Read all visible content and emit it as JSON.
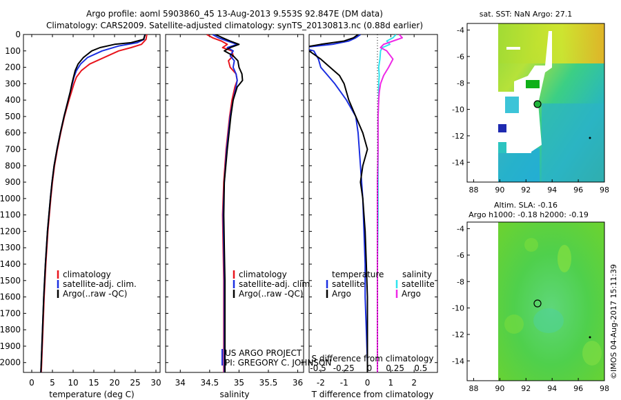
{
  "header": {
    "line1": "Argo profile: aoml 5903860_45 13-Aug-2013 9.553S 92.847E (DM data)",
    "line2": "Climatology: CARS2009. Satellite-adjusted climatology: synTS_20130813.nc (0.88d earlier)"
  },
  "colors": {
    "climatology": "#e8141c",
    "satellite": "#1a2ee0",
    "argo": "#000000",
    "sat_salinity": "#2fe4ee",
    "argo_salinity": "#ee28e6"
  },
  "chart_data": [
    {
      "type": "line",
      "name": "temperature-profile",
      "xlabel": "temperature (deg C)",
      "ylabel": "",
      "xlim": [
        -2,
        31
      ],
      "ylim": [
        2060,
        0
      ],
      "xticks": [
        0,
        5,
        10,
        15,
        20,
        25,
        30
      ],
      "yticks": [
        0,
        100,
        200,
        300,
        400,
        500,
        600,
        700,
        800,
        900,
        1000,
        1100,
        1200,
        1300,
        1400,
        1500,
        1600,
        1700,
        1800,
        1900,
        2000
      ],
      "legend": [
        "climatology",
        "satellite-adj. clim.",
        "Argo(..raw -QC)"
      ],
      "series": [
        {
          "name": "climatology",
          "depth": [
            0,
            30,
            60,
            80,
            100,
            140,
            180,
            220,
            260,
            300,
            350,
            400,
            500,
            600,
            700,
            800,
            900,
            1000,
            1200,
            1400,
            1600,
            1800,
            2000,
            2060
          ],
          "values": [
            27.8,
            27.6,
            26.5,
            24,
            21,
            17.5,
            14,
            12,
            10.8,
            10.2,
            9.6,
            9.0,
            7.9,
            7.0,
            6.2,
            5.5,
            5.0,
            4.6,
            3.9,
            3.4,
            3.0,
            2.7,
            2.4,
            2.3
          ]
        },
        {
          "name": "satellite-adj. clim.",
          "depth": [
            0,
            30,
            50,
            70,
            100,
            140,
            180,
            220,
            260,
            300,
            350,
            400,
            500,
            600,
            700,
            800,
            900,
            1000,
            1200,
            1400,
            1600,
            1800,
            2000,
            2060
          ],
          "values": [
            27.3,
            27.1,
            25.5,
            21,
            17,
            13.5,
            11.8,
            10.8,
            10.2,
            9.8,
            9.3,
            8.8,
            7.8,
            6.9,
            6.1,
            5.4,
            4.9,
            4.5,
            3.8,
            3.3,
            2.9,
            2.6,
            2.3,
            2.2
          ]
        },
        {
          "name": "Argo",
          "depth": [
            0,
            30,
            50,
            60,
            80,
            100,
            140,
            180,
            220,
            260,
            300,
            350,
            400,
            500,
            600,
            700,
            800,
            900,
            1000,
            1200,
            1400,
            1600,
            1800,
            2000,
            2060
          ],
          "values": [
            27.4,
            27.0,
            24,
            20,
            16.5,
            14.5,
            12.5,
            11.2,
            10.5,
            10.1,
            9.7,
            9.3,
            8.8,
            7.8,
            6.9,
            6.1,
            5.4,
            4.9,
            4.5,
            3.8,
            3.3,
            2.9,
            2.6,
            2.3,
            2.2
          ]
        }
      ]
    },
    {
      "type": "line",
      "name": "salinity-profile",
      "xlabel": "salinity",
      "xlim": [
        33.75,
        36.1
      ],
      "ylim": [
        2060,
        0
      ],
      "xticks": [
        34,
        34.5,
        35,
        35.5,
        36
      ],
      "legend": [
        "climatology",
        "satellite-adj. clim.",
        "Argo(..raw -QC)"
      ],
      "annotations": [
        "US ARGO PROJECT",
        "PI: GREGORY C. JOHNSON"
      ],
      "series": [
        {
          "name": "climatology",
          "depth": [
            0,
            20,
            40,
            60,
            80,
            100,
            130,
            160,
            200,
            240,
            280,
            320,
            400,
            500,
            700,
            900,
            1100,
            1300,
            1500,
            1700,
            1900,
            2060
          ],
          "values": [
            34.45,
            34.55,
            34.7,
            34.8,
            34.72,
            34.88,
            34.9,
            34.82,
            34.85,
            34.95,
            34.97,
            34.93,
            34.88,
            34.84,
            34.78,
            34.74,
            34.72,
            34.73,
            34.74,
            34.74,
            34.74,
            34.74
          ]
        },
        {
          "name": "satellite-adj. clim.",
          "depth": [
            0,
            20,
            40,
            60,
            80,
            100,
            130,
            160,
            200,
            240,
            280,
            320,
            400,
            500,
            700,
            900,
            1100,
            1300,
            1500,
            1700,
            1900,
            2060
          ],
          "values": [
            34.55,
            34.65,
            34.8,
            34.97,
            34.8,
            34.9,
            34.85,
            34.92,
            34.9,
            34.95,
            34.97,
            34.95,
            34.9,
            34.85,
            34.79,
            34.75,
            34.73,
            34.74,
            34.75,
            34.75,
            34.75,
            34.75
          ]
        },
        {
          "name": "Argo",
          "depth": [
            0,
            20,
            40,
            60,
            80,
            100,
            130,
            160,
            200,
            240,
            280,
            320,
            400,
            500,
            700,
            900,
            1100,
            1300,
            1500,
            1700,
            1900,
            2060
          ],
          "values": [
            34.6,
            34.72,
            34.85,
            35.0,
            34.85,
            34.75,
            34.9,
            34.98,
            35.0,
            35.05,
            35.06,
            34.97,
            34.9,
            34.86,
            34.8,
            34.75,
            34.74,
            34.75,
            34.76,
            34.76,
            34.76,
            34.76
          ]
        }
      ]
    },
    {
      "type": "line",
      "name": "difference-profile",
      "xlabel": "T difference from climatology",
      "xlabel_top": "S difference from climatology",
      "xlim": [
        -2.5,
        3
      ],
      "ylim": [
        2060,
        0
      ],
      "xticks": [
        -2,
        -1,
        0,
        1,
        2
      ],
      "sticks": [
        -0.5,
        -0.25,
        0,
        0.25,
        0.5
      ],
      "legend_left_title": "temperature",
      "legend_right_title": "salinity",
      "legend": [
        "satellite",
        "Argo",
        "satellite",
        "Argo"
      ],
      "series": [
        {
          "name": "T satellite",
          "depth": [
            0,
            20,
            40,
            60,
            80,
            100,
            150,
            200,
            250,
            300,
            400,
            500,
            600,
            800,
            1000,
            1200,
            1400,
            1600,
            1800,
            2000,
            2060
          ],
          "values": [
            -0.3,
            -0.5,
            -0.8,
            -1.5,
            -2.8,
            -2.3,
            -2.1,
            -2.0,
            -1.7,
            -1.4,
            -0.9,
            -0.5,
            -0.4,
            -0.3,
            -0.2,
            -0.15,
            -0.1,
            -0.1,
            -0.05,
            0,
            0
          ]
        },
        {
          "name": "T Argo",
          "depth": [
            0,
            20,
            40,
            60,
            80,
            100,
            150,
            200,
            250,
            300,
            400,
            500,
            600,
            700,
            800,
            900,
            1000,
            1200,
            1400,
            1600,
            1800,
            2000,
            2060
          ],
          "values": [
            -0.4,
            -0.6,
            -1.0,
            -2.0,
            -2.8,
            -2.5,
            -2.0,
            -1.6,
            -1.2,
            -1.0,
            -0.8,
            -0.5,
            -0.2,
            0,
            -0.2,
            -0.3,
            -0.2,
            -0.1,
            -0.05,
            0,
            0,
            0,
            0
          ]
        },
        {
          "name": "S satellite",
          "depth": [
            0,
            20,
            40,
            60,
            80,
            100,
            150,
            200,
            250,
            300,
            400,
            500,
            700,
            900,
            1100,
            1400,
            1700,
            2000,
            2060
          ],
          "values": [
            0.3,
            0.25,
            0.15,
            0.2,
            0.08,
            0.05,
            0.04,
            0.02,
            0.03,
            0.02,
            0.02,
            0.01,
            0.01,
            0.01,
            0.01,
            0.0,
            0.0,
            0.0,
            0.0
          ]
        },
        {
          "name": "S Argo",
          "depth": [
            0,
            20,
            40,
            60,
            80,
            100,
            150,
            200,
            250,
            300,
            350,
            400,
            500,
            700,
            900,
            1100,
            1400,
            1700,
            2000,
            2060
          ],
          "values": [
            0.35,
            0.4,
            0.25,
            0.1,
            0.05,
            0.15,
            0.25,
            0.18,
            0.1,
            0.05,
            0.03,
            0.02,
            0.01,
            0.01,
            0.0,
            0.0,
            0.0,
            0.0,
            0.0,
            0.0
          ]
        }
      ]
    },
    {
      "type": "heatmap",
      "name": "sst-map",
      "title": "sat. SST: NaN Argo: 27.1",
      "xlim": [
        87.5,
        98
      ],
      "ylim": [
        -15.5,
        -3.5
      ],
      "xticks": [
        88,
        90,
        92,
        94,
        96,
        98
      ],
      "yticks": [
        -4,
        -6,
        -8,
        -10,
        -12,
        -14
      ],
      "marker": {
        "lon": 92.847,
        "lat": -9.553
      }
    },
    {
      "type": "heatmap",
      "name": "sla-map",
      "title": "Altim. SLA: -0.16",
      "subtitle": "Argo h1000: -0.18 h2000: -0.19",
      "xlim": [
        87.5,
        98
      ],
      "ylim": [
        -15.5,
        -3.5
      ],
      "xticks": [
        88,
        90,
        92,
        94,
        96,
        98
      ],
      "yticks": [
        -4,
        -6,
        -8,
        -10,
        -12,
        -14
      ],
      "marker": {
        "lon": 92.847,
        "lat": -9.553
      }
    }
  ],
  "footer": {
    "stamp": "©IMOS 04-Aug-2017 15:11:39"
  }
}
